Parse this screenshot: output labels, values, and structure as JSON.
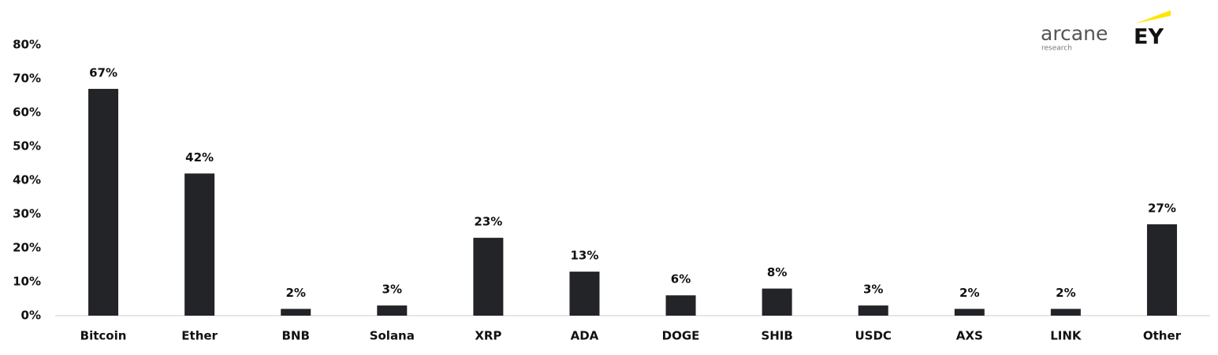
{
  "chart_data": {
    "type": "bar",
    "categories": [
      "Bitcoin",
      "Ether",
      "BNB",
      "Solana",
      "XRP",
      "ADA",
      "DOGE",
      "SHIB",
      "USDC",
      "AXS",
      "LINK",
      "Other"
    ],
    "values": [
      67,
      42,
      2,
      3,
      23,
      13,
      6,
      8,
      3,
      2,
      2,
      27
    ],
    "value_labels": [
      "67%",
      "42%",
      "2%",
      "3%",
      "23%",
      "13%",
      "6%",
      "8%",
      "3%",
      "2%",
      "2%",
      "27%"
    ],
    "color": "#222428",
    "ylim": [
      0,
      80
    ],
    "yticks": [
      {
        "value": 0,
        "label": "0%"
      },
      {
        "value": 10,
        "label": "10%"
      },
      {
        "value": 20,
        "label": "20%"
      },
      {
        "value": 30,
        "label": "30%"
      },
      {
        "value": 40,
        "label": "40%"
      },
      {
        "value": 50,
        "label": "50%"
      },
      {
        "value": 60,
        "label": "60%"
      },
      {
        "value": 70,
        "label": "70%"
      },
      {
        "value": 80,
        "label": "80%"
      }
    ],
    "grid": false,
    "logo": {
      "arcane": "arcane",
      "research": "research",
      "ey": "EY"
    }
  }
}
